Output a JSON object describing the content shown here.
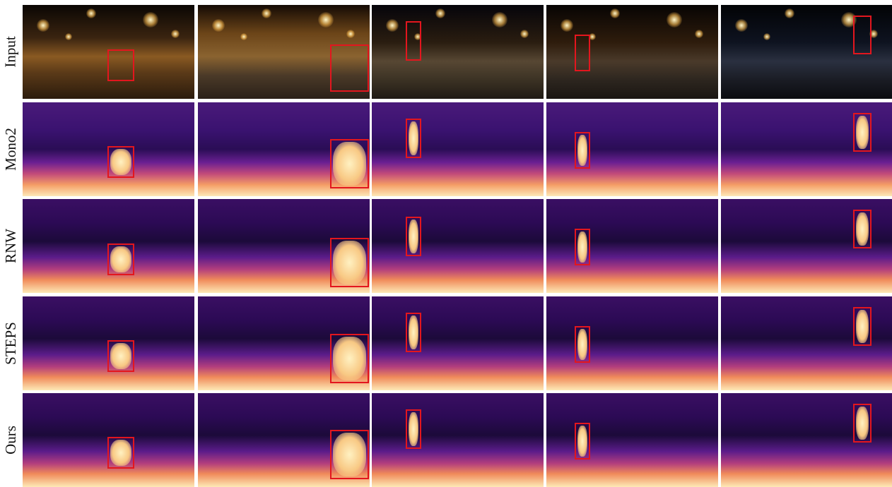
{
  "row_labels": [
    "Input",
    "Mono2",
    "RNW",
    "STEPS",
    "Ours"
  ],
  "colors": {
    "highlight_box": "#e3161e",
    "background": "#ffffff"
  }
}
